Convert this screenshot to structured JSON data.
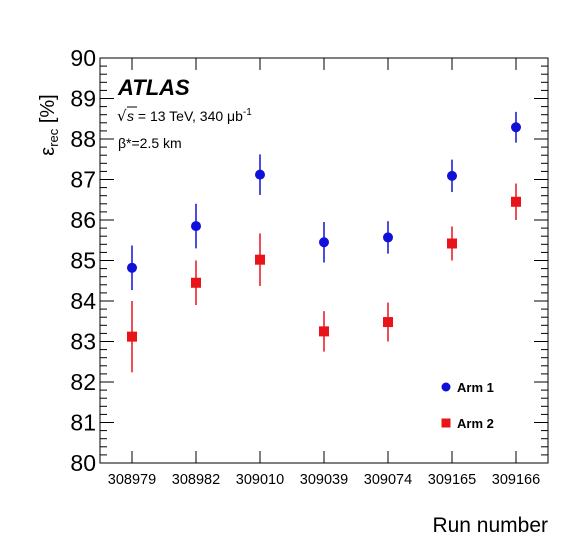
{
  "chart_data": {
    "type": "scatter",
    "experiment_label": "ATLAS",
    "annotation_energy_prefix": "s",
    "annotation_energy_rest": " = 13 TeV, 340 μb",
    "annotation_energy_sup": "-1",
    "annotation_beta": "β*=2.5 km",
    "ylabel_symbol": "ε",
    "ylabel_sub": "rec",
    "ylabel_unit": " [%]",
    "xlabel": "Run number",
    "categories": [
      "308979",
      "308982",
      "309010",
      "309039",
      "309074",
      "309165",
      "309166"
    ],
    "ylim": [
      80,
      90
    ],
    "yticks": [
      80,
      81,
      82,
      83,
      84,
      85,
      86,
      87,
      88,
      89,
      90
    ],
    "legend_position": "bottom-right",
    "grid": false,
    "series": [
      {
        "name": "Arm 1",
        "marker": "circle",
        "color": "#1010d8",
        "values": [
          84.82,
          85.85,
          87.12,
          85.45,
          85.57,
          87.09,
          88.29
        ],
        "errors": [
          0.55,
          0.55,
          0.5,
          0.5,
          0.4,
          0.4,
          0.38
        ]
      },
      {
        "name": "Arm 2",
        "marker": "square",
        "color": "#e8141a",
        "values": [
          83.12,
          84.45,
          85.02,
          83.25,
          83.48,
          85.42,
          86.45
        ],
        "errors": [
          0.88,
          0.55,
          0.65,
          0.5,
          0.48,
          0.42,
          0.45
        ]
      }
    ]
  }
}
